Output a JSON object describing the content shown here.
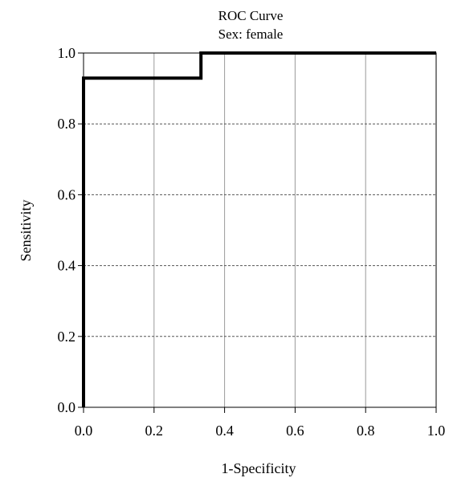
{
  "chart_data": {
    "type": "line",
    "title": "ROC Curve",
    "subtitle": "Sex: female",
    "xlabel": "1-Specificity",
    "ylabel": "Sensitivity",
    "xlim": [
      0.0,
      1.0
    ],
    "ylim": [
      0.0,
      1.0
    ],
    "x_ticks": [
      "0.0",
      "0.2",
      "0.4",
      "0.6",
      "0.8",
      "1.0"
    ],
    "y_ticks": [
      "0.0",
      "0.2",
      "0.4",
      "0.6",
      "0.8",
      "1.0"
    ],
    "grid": {
      "x": "solid",
      "y": "dashed"
    },
    "series": [
      {
        "x": [
          0.0,
          0.0,
          0.333,
          0.333,
          1.0
        ],
        "y": [
          0.0,
          0.929,
          0.929,
          1.0,
          1.0
        ],
        "color": "#000000"
      }
    ]
  }
}
